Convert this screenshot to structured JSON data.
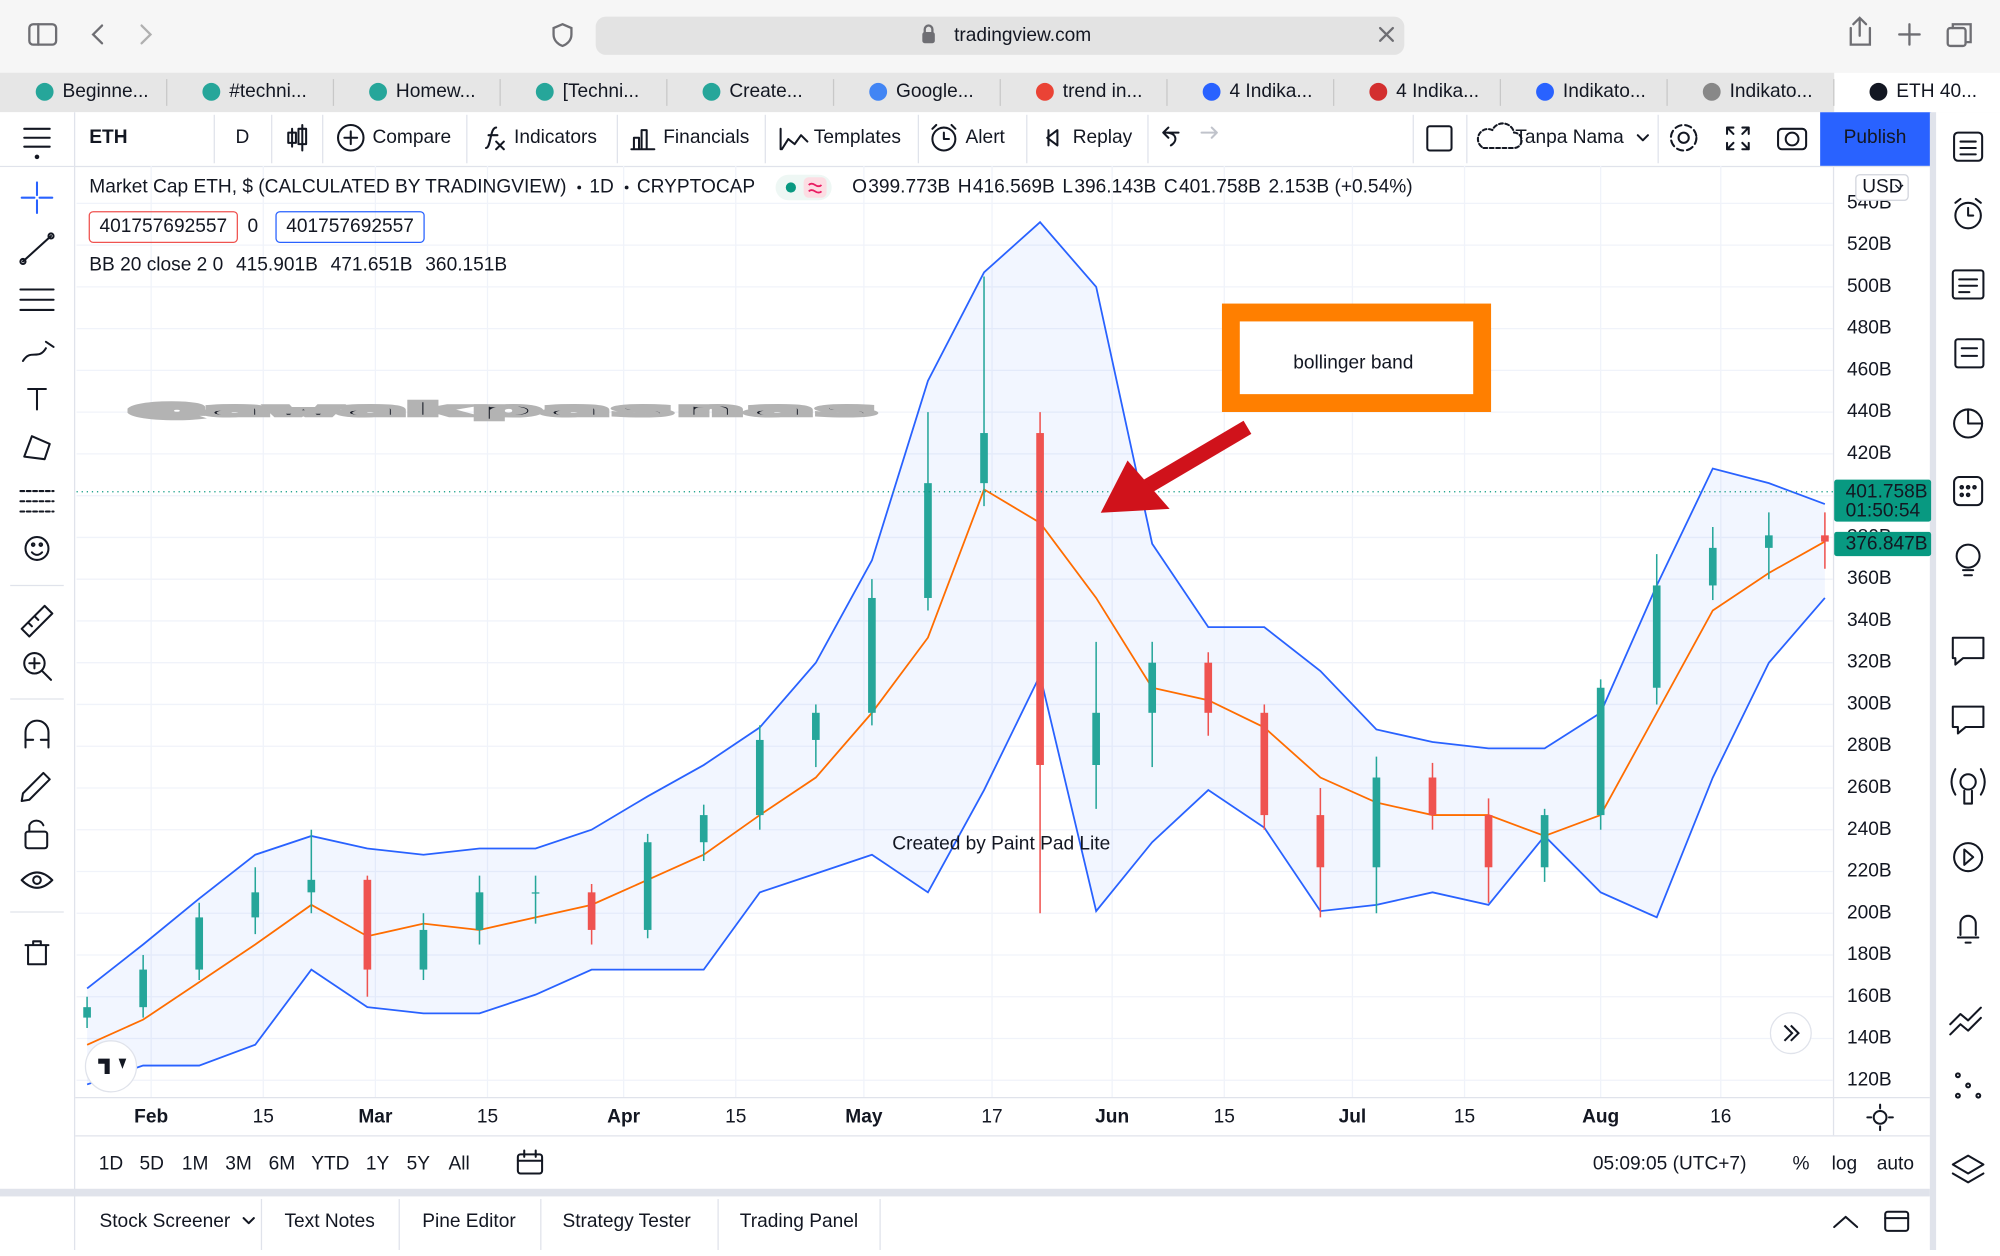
{
  "browser": {
    "url": "tradingview.com",
    "tabs": [
      "Beginne...",
      "#techni...",
      "Homew...",
      "[Techni...",
      "Create...",
      "Google...",
      "trend in...",
      "4 Indika...",
      "4 Indika...",
      "Indikato...",
      "Indikato...",
      "ETH 40..."
    ]
  },
  "toolbar": {
    "symbol": "ETH",
    "interval": "D",
    "buttons": [
      "Compare",
      "Indicators",
      "Financials",
      "Templates",
      "Alert",
      "Replay"
    ],
    "layout_name": "Tanpa Nama",
    "publish": "Publish"
  },
  "legend": {
    "title": "Market Cap ETH, $ (CALCULATED BY TRADINGVIEW)",
    "interval": "1D",
    "exchange": "CRYPTOCAP",
    "ohlc": [
      [
        "O",
        "399.773B"
      ],
      [
        "H",
        "416.569B"
      ],
      [
        "L",
        "396.143B"
      ],
      [
        "C",
        "401.758B"
      ]
    ],
    "change": "2.153B (+0.54%)",
    "sell": "401757692557",
    "spread": "0",
    "buy": "401757692557",
    "indicator": "BB 20 close 2 0",
    "indicator_values": [
      "415.901B",
      "471.651B",
      "360.151B"
    ]
  },
  "price_tags": {
    "last": "401.758B",
    "countdown": "01:50:54",
    "bb": "376.847B",
    "currency": "USD"
  },
  "watermark": "@awakpasnas",
  "annotation": "bollinger band",
  "faint_watermark": "Created by Paint Pad Lite",
  "chart_data": {
    "type": "candlestick",
    "x": [
      24,
      31,
      38,
      45,
      52,
      59,
      66,
      73,
      80,
      87,
      94,
      101,
      108,
      115,
      122,
      129,
      136,
      143,
      150,
      157,
      164,
      171,
      178,
      185,
      192,
      199,
      206,
      213,
      220,
      227,
      234,
      241
    ],
    "open": [
      150,
      155,
      173,
      198,
      210,
      216,
      173,
      192,
      210,
      210,
      192,
      234,
      247,
      283,
      296,
      351,
      406,
      430,
      271,
      296,
      320,
      296,
      247,
      222,
      265,
      247,
      222,
      247,
      308,
      357,
      375,
      381
    ],
    "high": [
      160,
      180,
      205,
      222,
      240,
      218,
      200,
      218,
      218,
      214,
      238,
      252,
      290,
      300,
      360,
      440,
      505,
      440,
      330,
      330,
      325,
      300,
      260,
      275,
      272,
      255,
      250,
      312,
      372,
      385,
      392,
      392
    ],
    "low": [
      145,
      150,
      168,
      190,
      200,
      160,
      168,
      185,
      195,
      185,
      188,
      225,
      240,
      270,
      290,
      345,
      395,
      200,
      250,
      270,
      285,
      240,
      198,
      200,
      240,
      205,
      215,
      240,
      300,
      350,
      360,
      365
    ],
    "close": [
      155,
      173,
      198,
      210,
      216,
      173,
      192,
      210,
      210,
      192,
      234,
      247,
      283,
      296,
      351,
      406,
      430,
      271,
      296,
      320,
      296,
      247,
      222,
      265,
      247,
      222,
      247,
      308,
      357,
      375,
      381,
      378
    ],
    "up_color": "#26a69a",
    "down_color": "#ef5350",
    "bands": [
      {
        "color": "#2962ff",
        "values": [
          164,
          185,
          207,
          228,
          237,
          231,
          228,
          231,
          231,
          240,
          256,
          271,
          289,
          320,
          369,
          455,
          507,
          531,
          500,
          377,
          337,
          337,
          316,
          288,
          282,
          279,
          279,
          296,
          357,
          413,
          406,
          396
        ]
      },
      {
        "color": "#ff6d00",
        "values": [
          137,
          149,
          167,
          185,
          204,
          189,
          195,
          192,
          198,
          204,
          216,
          228,
          247,
          265,
          296,
          332,
          403,
          387,
          351,
          308,
          302,
          289,
          265,
          253,
          247,
          247,
          237,
          247,
          296,
          345,
          363,
          378
        ]
      },
      {
        "color": "#2962ff",
        "values": [
          118,
          127,
          127,
          137,
          173,
          155,
          152,
          152,
          161,
          173,
          173,
          173,
          210,
          219,
          228,
          210,
          259,
          314,
          201,
          234,
          259,
          241,
          201,
          204,
          210,
          204,
          237,
          210,
          198,
          265,
          320,
          351
        ]
      }
    ],
    "band_fill": "#2962ff",
    "xlim": [
      23,
      242
    ],
    "xticks": [
      {
        "value": 32,
        "label": "Feb"
      },
      {
        "value": 46,
        "label": "15"
      },
      {
        "value": 60,
        "label": "Mar"
      },
      {
        "value": 74,
        "label": "15"
      },
      {
        "value": 91,
        "label": "Apr"
      },
      {
        "value": 105,
        "label": "15"
      },
      {
        "value": 121,
        "label": "May"
      },
      {
        "value": 137,
        "label": "17"
      },
      {
        "value": 152,
        "label": "Jun"
      },
      {
        "value": 166,
        "label": "15"
      },
      {
        "value": 182,
        "label": "Jul"
      },
      {
        "value": 196,
        "label": "15"
      },
      {
        "value": 213,
        "label": "Aug"
      },
      {
        "value": 228,
        "label": "16"
      }
    ],
    "ylim": [
      112,
      558
    ],
    "yticks": [
      {
        "value": 120,
        "label": "120B"
      },
      {
        "value": 140,
        "label": "140B"
      },
      {
        "value": 160,
        "label": "160B"
      },
      {
        "value": 180,
        "label": "180B"
      },
      {
        "value": 200,
        "label": "200B"
      },
      {
        "value": 220,
        "label": "220B"
      },
      {
        "value": 240,
        "label": "240B"
      },
      {
        "value": 260,
        "label": "260B"
      },
      {
        "value": 280,
        "label": "280B"
      },
      {
        "value": 300,
        "label": "300B"
      },
      {
        "value": 320,
        "label": "320B"
      },
      {
        "value": 340,
        "label": "340B"
      },
      {
        "value": 360,
        "label": "360B"
      },
      {
        "value": 380,
        "label": "380B"
      },
      {
        "value": 400,
        "label": "400B"
      },
      {
        "value": 420,
        "label": "420B"
      },
      {
        "value": 440,
        "label": "440B"
      },
      {
        "value": 460,
        "label": "460B"
      },
      {
        "value": 480,
        "label": "480B"
      },
      {
        "value": 500,
        "label": "500B"
      },
      {
        "value": 520,
        "label": "520B"
      },
      {
        "value": 540,
        "label": "540B"
      }
    ],
    "grid": true,
    "log": false
  },
  "bottom_bar": {
    "ranges": [
      "1D",
      "5D",
      "1M",
      "3M",
      "6M",
      "YTD",
      "1Y",
      "5Y",
      "All"
    ],
    "time": "05:09:05 (UTC+7)",
    "scale_options": [
      "%",
      "log",
      "auto"
    ]
  },
  "panels": [
    "Stock Screener",
    "Text Notes",
    "Pine Editor",
    "Strategy Tester",
    "Trading Panel"
  ]
}
